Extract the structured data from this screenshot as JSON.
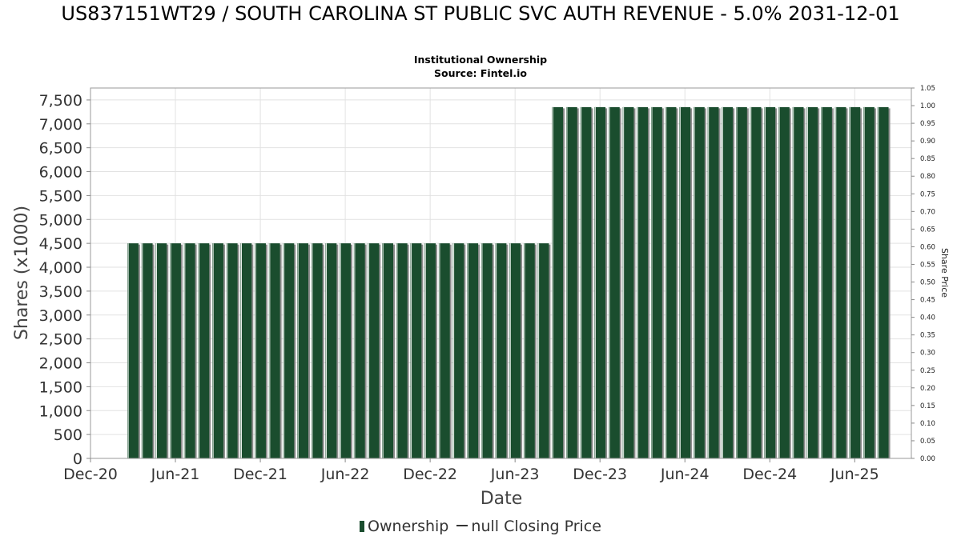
{
  "chart_data": {
    "type": "bar",
    "title": "US837151WT29 / SOUTH CAROLINA ST PUBLIC SVC AUTH REVENUE - 5.0% 2031-12-01",
    "subtitle_lines": [
      "Institutional Ownership",
      "Source: Fintel.io"
    ],
    "xlabel": "Date",
    "ylabel": "Shares (x1000)",
    "y2label": "Share Price",
    "ylim": [
      0,
      7750
    ],
    "y2lim": [
      0,
      1.05
    ],
    "x_tick_labels": [
      "Dec-20",
      "Jun-21",
      "Dec-21",
      "Jun-22",
      "Dec-22",
      "Jun-23",
      "Dec-23",
      "Jun-24",
      "Dec-24",
      "Jun-25"
    ],
    "y_tick_labels": [
      "0",
      "500",
      "1,000",
      "1,500",
      "2,000",
      "2,500",
      "3,000",
      "3,500",
      "4,000",
      "4,500",
      "5,000",
      "5,500",
      "6,000",
      "6,500",
      "7,000",
      "7,500"
    ],
    "y2_tick_labels": [
      "0.00",
      "0.05",
      "0.10",
      "0.15",
      "0.20",
      "0.25",
      "0.30",
      "0.35",
      "0.40",
      "0.45",
      "0.50",
      "0.55",
      "0.60",
      "0.65",
      "0.70",
      "0.75",
      "0.80",
      "0.85",
      "0.90",
      "0.95",
      "1.00",
      "1.05"
    ],
    "grid": true,
    "legend_position": "bottom",
    "legend": [
      "Ownership",
      "null Closing Price"
    ],
    "colors": {
      "bar": "#1a4d2e",
      "bar_shadow": "#8c8c8c",
      "bar_highlight": "#e8f0ea",
      "grid": "#e2e2e2"
    },
    "x_start": "2020-12",
    "x_end": "2025-10",
    "series": [
      {
        "name": "Ownership",
        "x": [
          "2021-03",
          "2021-04",
          "2021-05",
          "2021-06",
          "2021-07",
          "2021-08",
          "2021-09",
          "2021-10",
          "2021-11",
          "2021-12",
          "2022-01",
          "2022-02",
          "2022-03",
          "2022-04",
          "2022-05",
          "2022-06",
          "2022-07",
          "2022-08",
          "2022-09",
          "2022-10",
          "2022-11",
          "2022-12",
          "2023-01",
          "2023-02",
          "2023-03",
          "2023-04",
          "2023-05",
          "2023-06",
          "2023-07",
          "2023-08",
          "2023-09",
          "2023-10",
          "2023-11",
          "2023-12",
          "2024-01",
          "2024-02",
          "2024-03",
          "2024-04",
          "2024-05",
          "2024-06",
          "2024-07",
          "2024-08",
          "2024-09",
          "2024-10",
          "2024-11",
          "2024-12",
          "2025-01",
          "2025-02",
          "2025-03",
          "2025-04",
          "2025-05",
          "2025-06",
          "2025-07",
          "2025-08"
        ],
        "values": [
          4500,
          4500,
          4500,
          4500,
          4500,
          4500,
          4500,
          4500,
          4500,
          4500,
          4500,
          4500,
          4500,
          4500,
          4500,
          4500,
          4500,
          4500,
          4500,
          4500,
          4500,
          4500,
          4500,
          4500,
          4500,
          4500,
          4500,
          4500,
          4500,
          4500,
          7350,
          7350,
          7350,
          7350,
          7350,
          7350,
          7350,
          7350,
          7350,
          7350,
          7350,
          7350,
          7350,
          7350,
          7350,
          7350,
          7350,
          7350,
          7350,
          7350,
          7350,
          7350,
          7350,
          7350
        ]
      }
    ]
  }
}
